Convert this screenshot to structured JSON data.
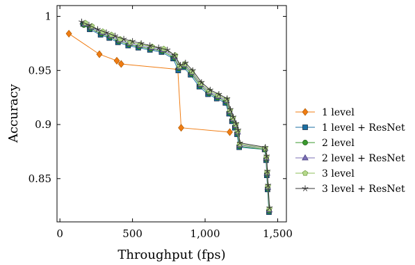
{
  "chart_data": {
    "type": "line",
    "title": "",
    "xlabel": "Throughput (fps)",
    "ylabel": "Accuracy",
    "xlim": [
      -20,
      1560
    ],
    "ylim": [
      0.81,
      1.01
    ],
    "x_ticks": [
      0,
      500,
      1000,
      1500
    ],
    "x_tick_labels": [
      "0",
      "500",
      "1,000",
      "1,500"
    ],
    "y_ticks": [
      0.85,
      0.9,
      0.95,
      1.0
    ],
    "y_tick_labels": [
      "0.85",
      "0.9",
      "0.95",
      "1"
    ],
    "grid": false,
    "legend_position": "outside-right",
    "series": [
      {
        "name": "1 level",
        "marker": "diamond",
        "color": "#f07c12",
        "points": [
          [
            62,
            0.984
          ],
          [
            272,
            0.965
          ],
          [
            392,
            0.959
          ],
          [
            422,
            0.956
          ],
          [
            812,
            0.951
          ],
          [
            835,
            0.897
          ],
          [
            1170,
            0.893
          ]
        ]
      },
      {
        "name": "1 level + ResNet",
        "marker": "square",
        "color": "#1a6fa3",
        "points": [
          [
            160,
            0.993
          ],
          [
            205,
            0.988
          ],
          [
            280,
            0.983
          ],
          [
            340,
            0.98
          ],
          [
            400,
            0.976
          ],
          [
            470,
            0.973
          ],
          [
            540,
            0.971
          ],
          [
            620,
            0.969
          ],
          [
            700,
            0.967
          ],
          [
            780,
            0.961
          ],
          [
            815,
            0.95
          ],
          [
            850,
            0.953
          ],
          [
            900,
            0.946
          ],
          [
            960,
            0.935
          ],
          [
            1020,
            0.928
          ],
          [
            1080,
            0.924
          ],
          [
            1140,
            0.92
          ],
          [
            1165,
            0.91
          ],
          [
            1185,
            0.903
          ],
          [
            1205,
            0.897
          ],
          [
            1220,
            0.891
          ],
          [
            1235,
            0.879
          ],
          [
            1410,
            0.877
          ],
          [
            1420,
            0.867
          ],
          [
            1425,
            0.853
          ],
          [
            1430,
            0.84
          ],
          [
            1440,
            0.819
          ]
        ]
      },
      {
        "name": "2 level",
        "marker": "circle",
        "color": "#3a9a2e",
        "points": [
          [
            165,
            0.992
          ],
          [
            210,
            0.989
          ],
          [
            285,
            0.984
          ],
          [
            345,
            0.981
          ],
          [
            405,
            0.977
          ],
          [
            475,
            0.974
          ],
          [
            545,
            0.972
          ],
          [
            625,
            0.97
          ],
          [
            705,
            0.968
          ],
          [
            785,
            0.962
          ],
          [
            820,
            0.952
          ],
          [
            855,
            0.954
          ],
          [
            905,
            0.947
          ],
          [
            965,
            0.936
          ],
          [
            1025,
            0.929
          ],
          [
            1085,
            0.925
          ],
          [
            1145,
            0.921
          ],
          [
            1168,
            0.911
          ],
          [
            1188,
            0.904
          ],
          [
            1208,
            0.898
          ],
          [
            1222,
            0.892
          ],
          [
            1237,
            0.88
          ],
          [
            1412,
            0.877
          ],
          [
            1421,
            0.868
          ],
          [
            1426,
            0.854
          ],
          [
            1431,
            0.841
          ],
          [
            1441,
            0.82
          ]
        ]
      },
      {
        "name": "2 level + ResNet",
        "marker": "triangle",
        "color": "#7b6fb6",
        "points": [
          [
            170,
            0.993
          ],
          [
            215,
            0.99
          ],
          [
            290,
            0.985
          ],
          [
            350,
            0.982
          ],
          [
            410,
            0.978
          ],
          [
            480,
            0.975
          ],
          [
            550,
            0.973
          ],
          [
            630,
            0.971
          ],
          [
            710,
            0.969
          ],
          [
            790,
            0.963
          ],
          [
            822,
            0.953
          ],
          [
            858,
            0.955
          ],
          [
            908,
            0.948
          ],
          [
            968,
            0.937
          ],
          [
            1028,
            0.93
          ],
          [
            1088,
            0.926
          ],
          [
            1148,
            0.922
          ],
          [
            1170,
            0.912
          ],
          [
            1190,
            0.905
          ],
          [
            1210,
            0.899
          ],
          [
            1224,
            0.893
          ],
          [
            1238,
            0.881
          ],
          [
            1413,
            0.878
          ],
          [
            1422,
            0.869
          ],
          [
            1427,
            0.855
          ],
          [
            1432,
            0.842
          ],
          [
            1442,
            0.821
          ]
        ]
      },
      {
        "name": "3 level",
        "marker": "pentagon",
        "color": "#b5d98a",
        "points": [
          [
            175,
            0.994
          ],
          [
            220,
            0.991
          ],
          [
            295,
            0.986
          ],
          [
            355,
            0.983
          ],
          [
            415,
            0.979
          ],
          [
            485,
            0.976
          ],
          [
            555,
            0.974
          ],
          [
            635,
            0.972
          ],
          [
            715,
            0.97
          ],
          [
            795,
            0.964
          ],
          [
            825,
            0.954
          ],
          [
            860,
            0.956
          ],
          [
            910,
            0.949
          ],
          [
            970,
            0.938
          ],
          [
            1030,
            0.931
          ],
          [
            1090,
            0.927
          ],
          [
            1150,
            0.923
          ],
          [
            1172,
            0.913
          ],
          [
            1192,
            0.906
          ],
          [
            1212,
            0.9
          ],
          [
            1226,
            0.894
          ],
          [
            1239,
            0.882
          ],
          [
            1414,
            0.878
          ],
          [
            1423,
            0.87
          ],
          [
            1428,
            0.856
          ],
          [
            1433,
            0.843
          ],
          [
            1443,
            0.822
          ]
        ]
      },
      {
        "name": "3 level + ResNet",
        "marker": "star",
        "color": "#333333",
        "points": [
          [
            150,
            0.995
          ],
          [
            200,
            0.992
          ],
          [
            260,
            0.988
          ],
          [
            320,
            0.985
          ],
          [
            380,
            0.982
          ],
          [
            440,
            0.979
          ],
          [
            500,
            0.977
          ],
          [
            560,
            0.975
          ],
          [
            620,
            0.973
          ],
          [
            680,
            0.971
          ],
          [
            740,
            0.969
          ],
          [
            790,
            0.964
          ],
          [
            830,
            0.955
          ],
          [
            865,
            0.957
          ],
          [
            915,
            0.95
          ],
          [
            975,
            0.939
          ],
          [
            1035,
            0.932
          ],
          [
            1095,
            0.928
          ],
          [
            1152,
            0.924
          ],
          [
            1174,
            0.914
          ],
          [
            1194,
            0.907
          ],
          [
            1214,
            0.901
          ],
          [
            1228,
            0.895
          ],
          [
            1240,
            0.883
          ],
          [
            1415,
            0.879
          ],
          [
            1424,
            0.871
          ],
          [
            1429,
            0.857
          ],
          [
            1434,
            0.844
          ],
          [
            1444,
            0.823
          ]
        ]
      }
    ]
  }
}
